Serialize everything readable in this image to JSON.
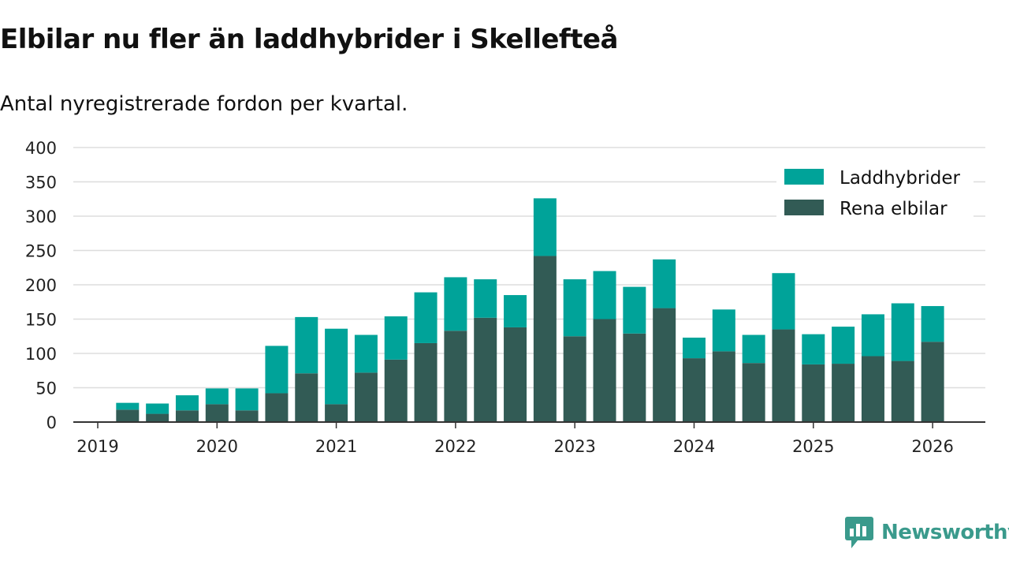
{
  "title": "Elbilar nu fler än laddhybrider i Skellefteå",
  "subtitle": "Antal nyregistrerade fordon per kvartal.",
  "brand": {
    "name": "Newsworthy",
    "icon": "newsworthy-logo-icon"
  },
  "colors": {
    "laddhybrider": "#00a399",
    "rena_elbilar": "#325b55",
    "grid": "#dddddd",
    "axis": "#333333"
  },
  "chart_data": {
    "type": "bar",
    "stacked": true,
    "title": "Elbilar nu fler än laddhybrider i Skellefteå",
    "subtitle": "Antal nyregistrerade fordon per kvartal.",
    "xlabel": "",
    "ylabel": "",
    "ylim": [
      0,
      400
    ],
    "yticks": [
      0,
      50,
      100,
      150,
      200,
      250,
      300,
      350,
      400
    ],
    "xticks": [
      "2019",
      "2020",
      "2021",
      "2022",
      "2023",
      "2024",
      "2025",
      "2026"
    ],
    "grid": true,
    "legend_position": "top-right",
    "categories": [
      "2019 Q2",
      "2019 Q3",
      "2019 Q4",
      "2020 Q1",
      "2020 Q2",
      "2020 Q3",
      "2020 Q4",
      "2021 Q1",
      "2021 Q2",
      "2021 Q3",
      "2021 Q4",
      "2022 Q1",
      "2022 Q2",
      "2022 Q3",
      "2022 Q4",
      "2023 Q1",
      "2023 Q2",
      "2023 Q3",
      "2023 Q4",
      "2024 Q1",
      "2024 Q2",
      "2024 Q3",
      "2024 Q4",
      "2025 Q1",
      "2025 Q2",
      "2025 Q3",
      "2025 Q4",
      "2026 Q1"
    ],
    "series": [
      {
        "name": "Rena elbilar",
        "color": "#325b55",
        "values": [
          18,
          12,
          17,
          26,
          17,
          42,
          71,
          26,
          72,
          91,
          115,
          133,
          152,
          138,
          242,
          125,
          150,
          129,
          166,
          93,
          103,
          86,
          135,
          84,
          85,
          96,
          89,
          117
        ]
      },
      {
        "name": "Laddhybrider",
        "color": "#00a399",
        "values": [
          10,
          15,
          22,
          23,
          32,
          69,
          82,
          110,
          55,
          63,
          74,
          78,
          56,
          47,
          84,
          83,
          70,
          68,
          71,
          30,
          61,
          41,
          82,
          44,
          54,
          61,
          84,
          52
        ]
      }
    ]
  }
}
